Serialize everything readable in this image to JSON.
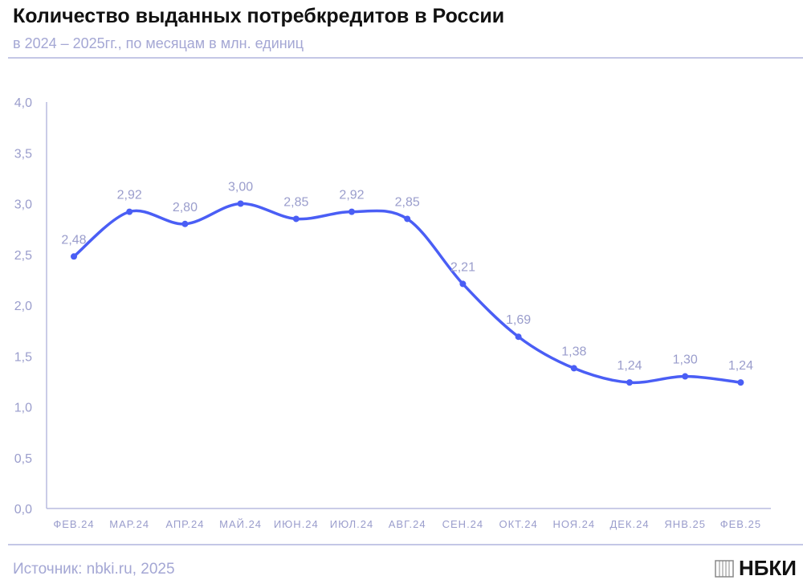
{
  "header": {
    "title": "Количество выданных потребкредитов в России",
    "subtitle": "в 2024 – 2025гг., по месяцам в млн. единиц"
  },
  "footer": {
    "source": "Источник: nbki.ru, 2025",
    "logo": "НБКИ"
  },
  "colors": {
    "line": "#4a5ef5",
    "label": "#9a9dcc",
    "axis": "#b8bbdf"
  },
  "chart_data": {
    "type": "line",
    "title": "Количество выданных потребкредитов в России",
    "categories": [
      "ФЕВ.24",
      "МАР.24",
      "АПР.24",
      "МАЙ.24",
      "ИЮН.24",
      "ИЮЛ.24",
      "АВГ.24",
      "СЕН.24",
      "ОКТ.24",
      "НОЯ.24",
      "ДЕК.24",
      "ЯНВ.25",
      "ФЕВ.25"
    ],
    "values": [
      2.48,
      2.92,
      2.8,
      3.0,
      2.85,
      2.92,
      2.85,
      2.21,
      1.69,
      1.38,
      1.24,
      1.3,
      1.24
    ],
    "value_labels": [
      "2,48",
      "2,92",
      "2,80",
      "3,00",
      "2,85",
      "2,92",
      "2,85",
      "2,21",
      "1,69",
      "1,38",
      "1,24",
      "1,30",
      "1,24"
    ],
    "yticks": [
      "0,0",
      "0,5",
      "1,0",
      "1,5",
      "2,0",
      "2,5",
      "3,0",
      "3,5",
      "4,0"
    ],
    "ylim": [
      0,
      4
    ],
    "grid": false,
    "legend": "none"
  }
}
